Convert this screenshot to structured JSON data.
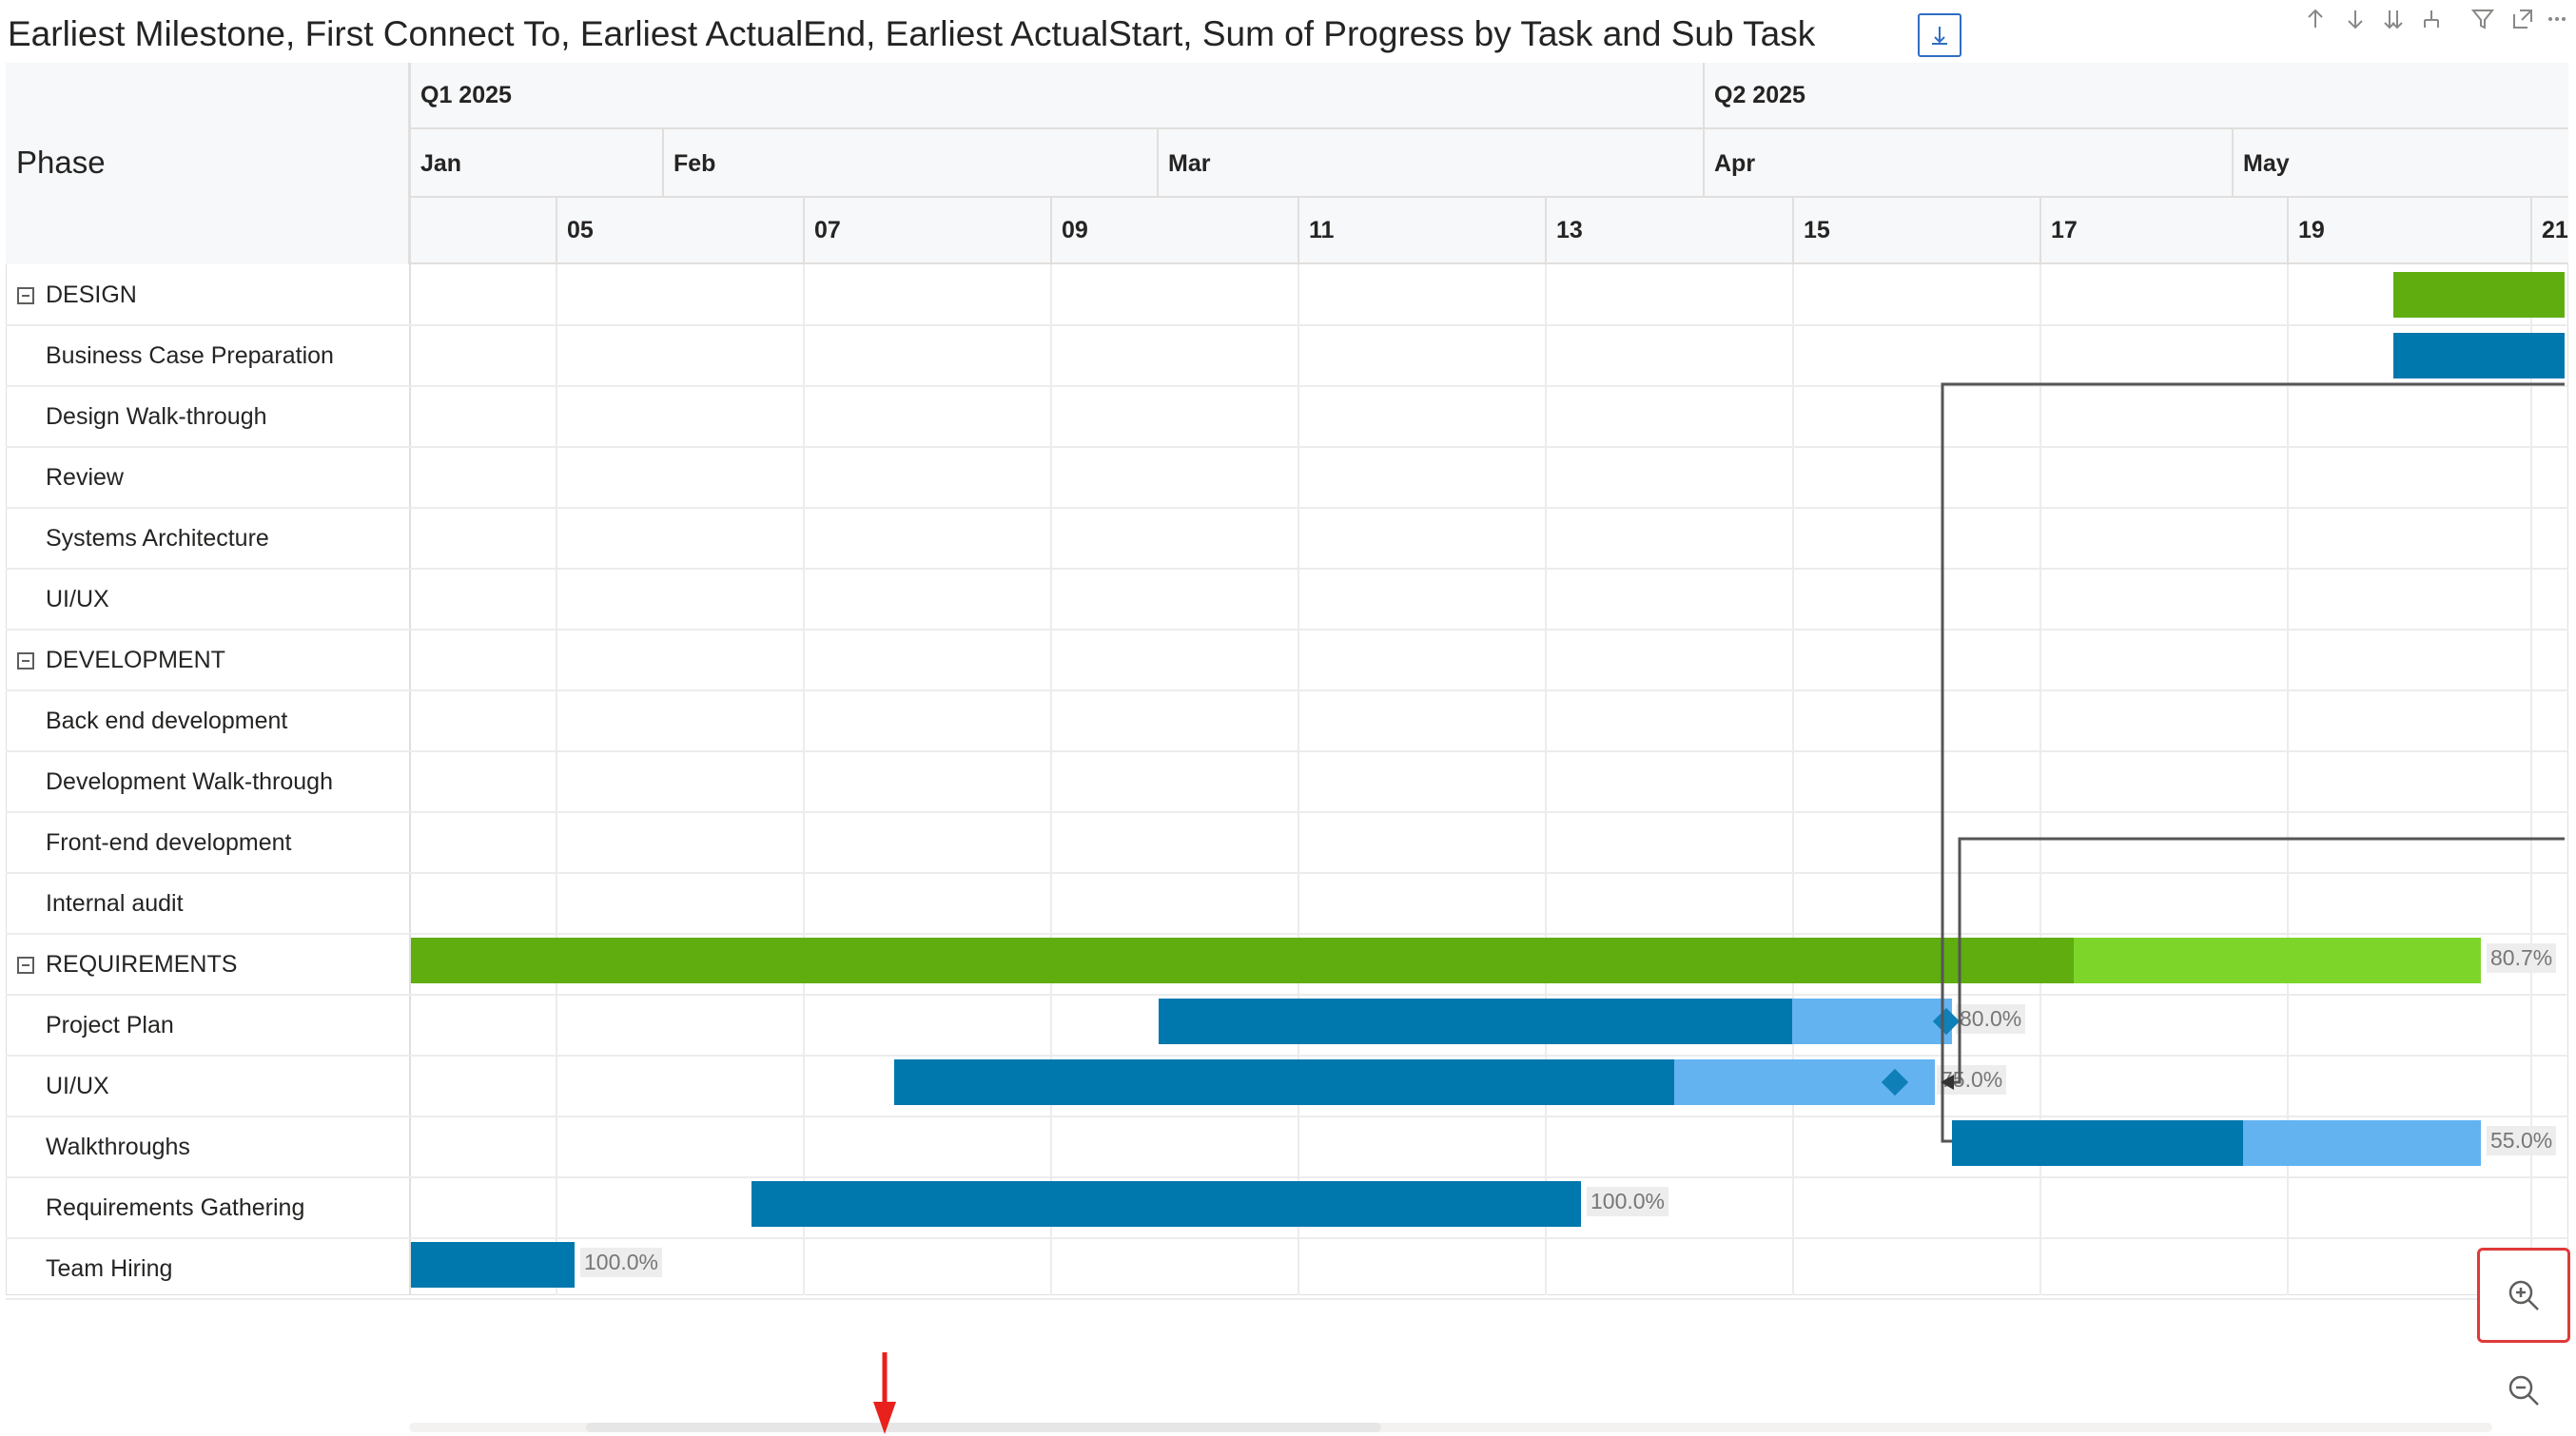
{
  "title": "Earliest Milestone, First Connect To, Earliest ActualEnd, Earliest ActualStart, Sum of Progress by Task and Sub Task",
  "header_icons": [
    "drill-down-icon",
    "arrow-up-icon",
    "arrow-down-icon",
    "expand-all-down-icon",
    "hierarchy-icon",
    "filter-icon",
    "focus-mode-icon",
    "more-options-icon"
  ],
  "phase_header": "Phase",
  "quarters": [
    "Q1 2025",
    "Q2 2025"
  ],
  "months": [
    "Jan",
    "Feb",
    "Mar",
    "Apr",
    "May"
  ],
  "weeks": [
    "05",
    "07",
    "09",
    "11",
    "13",
    "15",
    "17",
    "19",
    "21"
  ],
  "rows": [
    {
      "label": "DESIGN",
      "level": 0,
      "expanded": true
    },
    {
      "label": "Business Case Preparation",
      "level": 1
    },
    {
      "label": "Design Walk-through",
      "level": 1
    },
    {
      "label": "Review",
      "level": 1
    },
    {
      "label": "Systems Architecture",
      "level": 1
    },
    {
      "label": "UI/UX",
      "level": 1
    },
    {
      "label": "DEVELOPMENT",
      "level": 0,
      "expanded": true
    },
    {
      "label": "Back end development",
      "level": 1
    },
    {
      "label": "Development Walk-through",
      "level": 1
    },
    {
      "label": "Front-end development",
      "level": 1
    },
    {
      "label": "Internal audit",
      "level": 1
    },
    {
      "label": "REQUIREMENTS",
      "level": 0,
      "expanded": true
    },
    {
      "label": "Project Plan",
      "level": 1
    },
    {
      "label": "UI/UX",
      "level": 1
    },
    {
      "label": "Walkthroughs",
      "level": 1
    },
    {
      "label": "Requirements Gathering",
      "level": 1
    },
    {
      "label": "Team Hiring",
      "level": 1
    }
  ],
  "progress_labels": {
    "requirements": "80.7%",
    "project_plan": "80.0%",
    "ui_ux": "75.0%",
    "walkthroughs": "55.0%",
    "requirements_gathering": "100.0%",
    "team_hiring": "100.0%"
  },
  "tasks": [
    {
      "row": "DESIGN",
      "progress": null
    },
    {
      "row": "Business Case Preparation",
      "progress": null
    },
    {
      "row": "REQUIREMENTS",
      "progress": 0.807
    },
    {
      "row": "Project Plan",
      "progress": 0.8
    },
    {
      "row": "UI/UX",
      "progress": 0.75
    },
    {
      "row": "Walkthroughs",
      "progress": 0.55
    },
    {
      "row": "Requirements Gathering",
      "progress": 1.0
    },
    {
      "row": "Team Hiring",
      "progress": 1.0
    }
  ],
  "colors": {
    "phase_done": "#5fad0f",
    "phase_remaining": "#7ed52a",
    "task_done": "#0078ad",
    "task_remaining": "#63b3f1",
    "milestone": "#0f7fb8",
    "connector": "#555555",
    "highlight": "#e03a3a"
  },
  "zoom": {
    "in_icon": "zoom-in-icon",
    "out_icon": "zoom-out-icon"
  }
}
